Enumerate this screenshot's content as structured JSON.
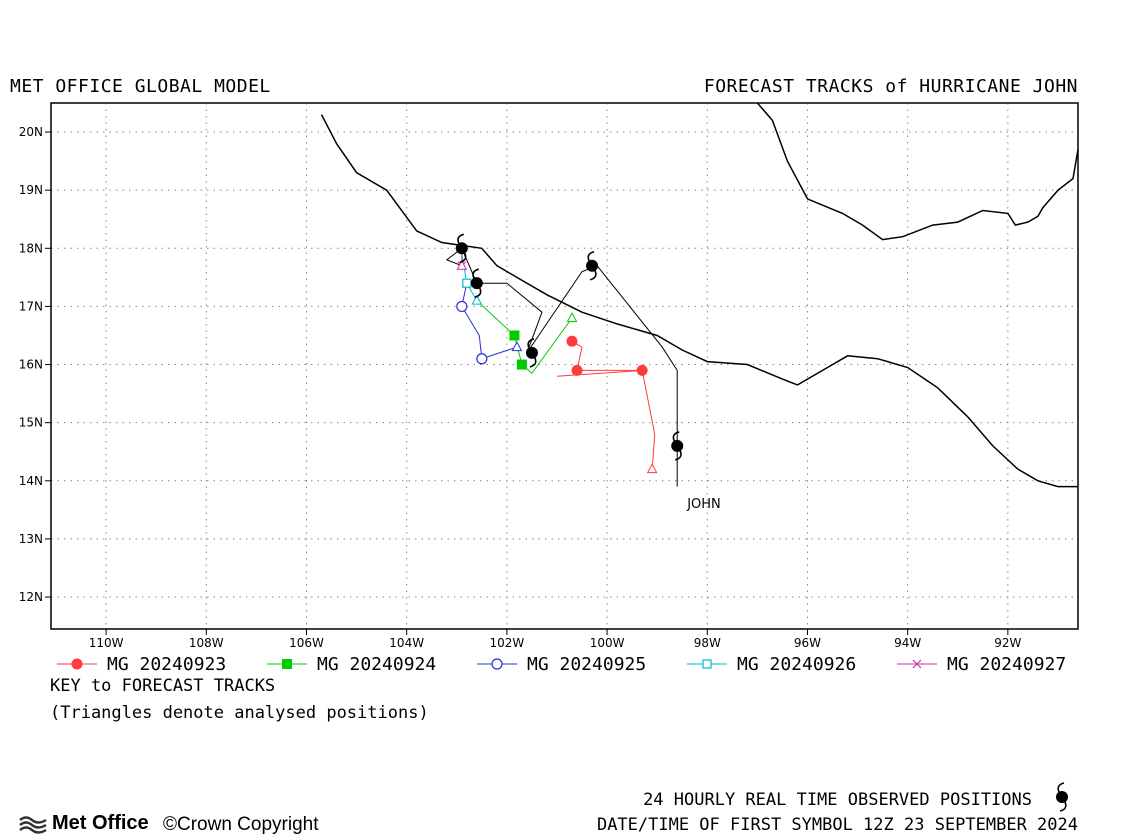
{
  "header": {
    "left_title": "MET OFFICE GLOBAL MODEL",
    "right_title": "FORECAST TRACKS of HURRICANE JOHN"
  },
  "map": {
    "lon_range": [
      -111.1,
      -90.6
    ],
    "lat_range": [
      11.45,
      20.5
    ],
    "grid": true,
    "x_ticks": [
      "110W",
      "108W",
      "106W",
      "104W",
      "102W",
      "100W",
      "98W",
      "96W",
      "94W",
      "92W"
    ],
    "x_tick_values": [
      -110,
      -108,
      -106,
      -104,
      -102,
      -100,
      -98,
      -96,
      -94,
      -92
    ],
    "y_ticks": [
      "20N",
      "19N",
      "18N",
      "17N",
      "16N",
      "15N",
      "14N",
      "13N",
      "12N"
    ],
    "y_tick_values": [
      20,
      19,
      18,
      17,
      16,
      15,
      14,
      13,
      12
    ],
    "storm_label": "JOHN",
    "storm_label_pos": [
      -98.6,
      13.6
    ],
    "colors": {
      "coast": "#000000",
      "grid": "#888888",
      "mg0923": "#ff3b3b",
      "mg0924": "#00cc00",
      "mg0925": "#2233cc",
      "mg0926": "#00bbcc",
      "mg0927": "#cc33aa",
      "observed": "#000000"
    }
  },
  "coastline": {
    "pacific": [
      [
        -105.7,
        20.3
      ],
      [
        -105.4,
        19.8
      ],
      [
        -105.0,
        19.3
      ],
      [
        -104.4,
        19.0
      ],
      [
        -103.8,
        18.3
      ],
      [
        -103.3,
        18.1
      ],
      [
        -102.5,
        18.0
      ],
      [
        -102.2,
        17.7
      ],
      [
        -101.8,
        17.5
      ],
      [
        -101.2,
        17.2
      ],
      [
        -100.5,
        16.9
      ],
      [
        -99.8,
        16.7
      ],
      [
        -99.0,
        16.5
      ],
      [
        -98.5,
        16.25
      ],
      [
        -98.0,
        16.05
      ],
      [
        -97.2,
        16.0
      ],
      [
        -96.5,
        15.75
      ],
      [
        -96.2,
        15.65
      ],
      [
        -95.6,
        15.95
      ],
      [
        -95.2,
        16.15
      ],
      [
        -94.6,
        16.1
      ],
      [
        -94.0,
        15.95
      ],
      [
        -93.4,
        15.6
      ],
      [
        -92.8,
        15.1
      ],
      [
        -92.3,
        14.6
      ],
      [
        -91.8,
        14.2
      ],
      [
        -91.4,
        14.0
      ],
      [
        -91.0,
        13.9
      ],
      [
        -90.6,
        13.9
      ]
    ],
    "gulf": [
      [
        -97.0,
        20.5
      ],
      [
        -96.7,
        20.2
      ],
      [
        -96.4,
        19.5
      ],
      [
        -96.0,
        18.85
      ],
      [
        -95.3,
        18.6
      ],
      [
        -94.9,
        18.4
      ],
      [
        -94.5,
        18.15
      ],
      [
        -94.1,
        18.2
      ],
      [
        -93.5,
        18.4
      ],
      [
        -93.0,
        18.45
      ],
      [
        -92.5,
        18.65
      ],
      [
        -92.0,
        18.6
      ],
      [
        -91.85,
        18.4
      ],
      [
        -91.6,
        18.45
      ],
      [
        -91.4,
        18.55
      ],
      [
        -91.3,
        18.7
      ],
      [
        -91.0,
        19.0
      ],
      [
        -90.7,
        19.2
      ],
      [
        -90.6,
        19.7
      ]
    ]
  },
  "tracks": [
    {
      "name": "MG 20240923",
      "color_key": "mg0923",
      "marker": "circle-filled",
      "points": [
        [
          -99.1,
          14.2
        ],
        [
          -99.05,
          14.8
        ],
        [
          -99.3,
          15.9
        ],
        [
          -100.6,
          15.9
        ],
        [
          -100.5,
          16.3
        ],
        [
          -100.7,
          16.4
        ]
      ],
      "extra_segment": [
        [
          -101.0,
          15.8
        ],
        [
          -99.3,
          15.9
        ]
      ],
      "markers_at": [
        [
          -99.3,
          15.9
        ],
        [
          -100.6,
          15.9
        ],
        [
          -100.7,
          16.4
        ]
      ]
    },
    {
      "name": "MG 20240924",
      "color_key": "mg0924",
      "marker": "square-filled",
      "points": [
        [
          -100.7,
          16.8
        ],
        [
          -101.5,
          15.85
        ],
        [
          -101.7,
          16.0
        ],
        [
          -101.85,
          16.5
        ],
        [
          -102.6,
          17.1
        ]
      ],
      "markers_at": [
        [
          -101.7,
          16.0
        ],
        [
          -101.85,
          16.5
        ]
      ]
    },
    {
      "name": "MG 20240925",
      "color_key": "mg0925",
      "marker": "circle-open",
      "points": [
        [
          -101.8,
          16.3
        ],
        [
          -102.5,
          16.1
        ],
        [
          -102.55,
          16.5
        ],
        [
          -102.9,
          17.0
        ],
        [
          -102.8,
          17.4
        ]
      ],
      "markers_at": [
        [
          -102.5,
          16.1
        ],
        [
          -102.9,
          17.0
        ]
      ]
    },
    {
      "name": "MG 20240926",
      "color_key": "mg0926",
      "marker": "square-open",
      "points": [
        [
          -102.6,
          17.1
        ],
        [
          -102.8,
          17.4
        ],
        [
          -102.9,
          17.9
        ]
      ],
      "markers_at": [
        [
          -102.8,
          17.4
        ]
      ]
    },
    {
      "name": "MG 20240927",
      "color_key": "mg0927",
      "marker": "cross",
      "points": [
        [
          -102.9,
          17.7
        ],
        [
          -102.9,
          18.0
        ]
      ],
      "markers_at": [
        [
          -102.9,
          17.7
        ]
      ]
    }
  ],
  "analysed_triangles": [
    {
      "color_key": "mg0923",
      "pos": [
        -99.1,
        14.2
      ]
    },
    {
      "color_key": "mg0924",
      "pos": [
        -100.7,
        16.8
      ]
    },
    {
      "color_key": "mg0925",
      "pos": [
        -101.8,
        16.3
      ]
    },
    {
      "color_key": "mg0926",
      "pos": [
        -102.6,
        17.1
      ]
    },
    {
      "color_key": "mg0927",
      "pos": [
        -102.9,
        17.7
      ]
    }
  ],
  "observed": {
    "track": [
      [
        -98.6,
        13.9
      ],
      [
        -98.6,
        15.9
      ],
      [
        -98.9,
        16.3
      ],
      [
        -100.2,
        17.7
      ],
      [
        -100.5,
        17.6
      ],
      [
        -101.6,
        16.2
      ],
      [
        -101.3,
        16.9
      ],
      [
        -102.0,
        17.4
      ],
      [
        -102.6,
        17.4
      ],
      [
        -102.9,
        18.0
      ],
      [
        -103.2,
        17.8
      ],
      [
        -102.9,
        17.7
      ]
    ],
    "positions": [
      [
        -98.6,
        14.6
      ],
      [
        -100.3,
        17.7
      ],
      [
        -101.5,
        16.2
      ],
      [
        -102.6,
        17.4
      ],
      [
        -102.9,
        18.0
      ]
    ]
  },
  "legend": {
    "items": [
      {
        "label": "MG 20240923",
        "color_key": "mg0923",
        "marker": "circle-filled"
      },
      {
        "label": "MG 20240924",
        "color_key": "mg0924",
        "marker": "square-filled"
      },
      {
        "label": "MG 20240925",
        "color_key": "mg0925",
        "marker": "circle-open"
      },
      {
        "label": "MG 20240926",
        "color_key": "mg0926",
        "marker": "square-open"
      },
      {
        "label": "MG 20240927",
        "color_key": "mg0927",
        "marker": "cross"
      }
    ],
    "key_title": "KEY to FORECAST TRACKS",
    "key_note": "(Triangles denote analysed positions)"
  },
  "footer": {
    "observed_label": "24 HOURLY REAL TIME OBSERVED POSITIONS",
    "date_label": "DATE/TIME OF FIRST SYMBOL 12Z 23 SEPTEMBER 2024",
    "logo_text": "Met Office",
    "copyright": "©Crown Copyright",
    "logo_icon": "met-office-waves-icon",
    "observed_icon": "hurricane-symbol-icon"
  }
}
